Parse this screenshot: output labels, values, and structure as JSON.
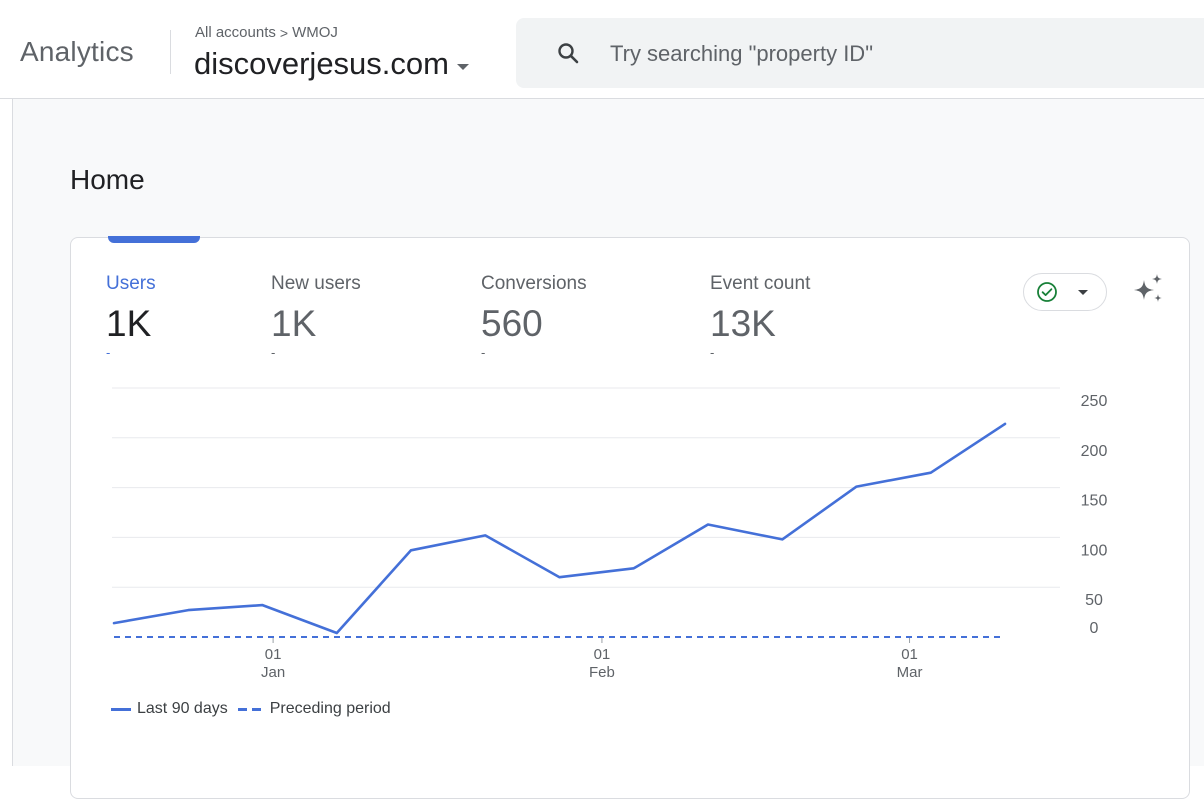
{
  "header": {
    "app_name": "Analytics",
    "breadcrumb": {
      "root": "All accounts",
      "separator": ">",
      "account": "WMOJ"
    },
    "property": "discoverjesus.com",
    "search_placeholder": "Try searching \"property ID\""
  },
  "page": {
    "title": "Home"
  },
  "metrics": [
    {
      "label": "Users",
      "value": "1K",
      "delta": "-",
      "active": true
    },
    {
      "label": "New users",
      "value": "1K",
      "delta": "-",
      "active": false
    },
    {
      "label": "Conversions",
      "value": "560",
      "delta": "-",
      "active": false
    },
    {
      "label": "Event count",
      "value": "13K",
      "delta": "-",
      "active": false
    }
  ],
  "icons": {
    "search": "search-icon",
    "property_dropdown": "chevron-down-icon",
    "status": "check-circle-icon",
    "insights": "sparkle-icon"
  },
  "colors": {
    "accent": "#4470d8",
    "check": "#188038"
  },
  "chart_data": {
    "type": "line",
    "x_tick_labels": [
      {
        "day": "01",
        "month": "Jan"
      },
      {
        "day": "01",
        "month": "Feb"
      },
      {
        "day": "01",
        "month": "Mar"
      }
    ],
    "x_tick_dates": [
      "2024-01-01",
      "2024-02-01",
      "2024-03-01"
    ],
    "ylim": [
      0,
      250
    ],
    "y_ticks": [
      0,
      50,
      100,
      150,
      200,
      250
    ],
    "grid": true,
    "legend_position": "bottom-left",
    "series": [
      {
        "name": "Last 90 days",
        "style": "solid",
        "x": [
          "2023-12-17",
          "2023-12-24",
          "2023-12-31",
          "2024-01-07",
          "2024-01-14",
          "2024-01-21",
          "2024-01-28",
          "2024-02-04",
          "2024-02-11",
          "2024-02-18",
          "2024-02-25",
          "2024-03-03",
          "2024-03-10"
        ],
        "values": [
          14,
          27,
          32,
          4,
          87,
          102,
          60,
          69,
          113,
          98,
          151,
          165,
          214
        ]
      },
      {
        "name": "Preceding period",
        "style": "dashed",
        "x": [
          "2023-12-17",
          "2024-03-10"
        ],
        "values": [
          0,
          0
        ]
      }
    ]
  }
}
